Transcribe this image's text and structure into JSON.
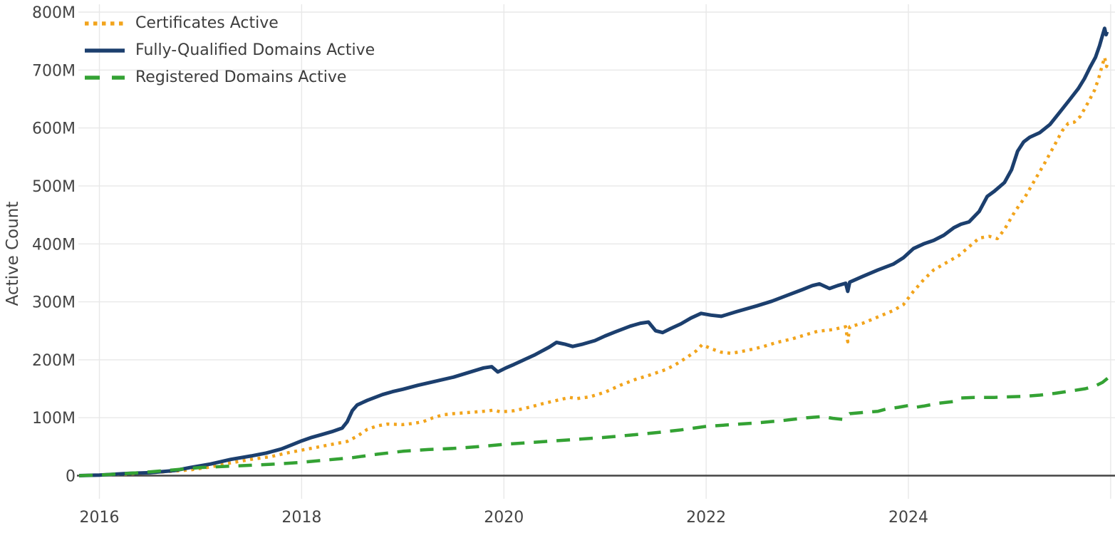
{
  "chart_data": {
    "type": "line",
    "title": "",
    "xlabel": "",
    "ylabel": "Active Count",
    "units": "millions",
    "grid": true,
    "legend_position": "top-left",
    "x_range": [
      2015.75,
      2026.05
    ],
    "y_range_millions": [
      0,
      800
    ],
    "x_ticks": [
      {
        "value": 2016,
        "label": "2016"
      },
      {
        "value": 2018,
        "label": "2018"
      },
      {
        "value": 2020,
        "label": "2020"
      },
      {
        "value": 2022,
        "label": "2022"
      },
      {
        "value": 2024,
        "label": "2024"
      },
      {
        "value": 2026,
        "label": ""
      }
    ],
    "y_ticks": [
      {
        "value": 0,
        "label": "0"
      },
      {
        "value": 100,
        "label": "100M"
      },
      {
        "value": 200,
        "label": "200M"
      },
      {
        "value": 300,
        "label": "300M"
      },
      {
        "value": 400,
        "label": "400M"
      },
      {
        "value": 500,
        "label": "500M"
      },
      {
        "value": 600,
        "label": "600M"
      },
      {
        "value": 700,
        "label": "700M"
      },
      {
        "value": 800,
        "label": "800M"
      }
    ],
    "series": [
      {
        "name": "Certificates Active",
        "color": "#f2a41c",
        "style": "dotted",
        "points": [
          [
            2015.8,
            0
          ],
          [
            2016,
            1
          ],
          [
            2016.3,
            3
          ],
          [
            2016.6,
            6
          ],
          [
            2016.9,
            10
          ],
          [
            2017.1,
            15
          ],
          [
            2017.3,
            22
          ],
          [
            2017.5,
            28
          ],
          [
            2017.7,
            33
          ],
          [
            2017.85,
            39
          ],
          [
            2018,
            44
          ],
          [
            2018.15,
            49
          ],
          [
            2018.3,
            54
          ],
          [
            2018.45,
            59
          ],
          [
            2018.55,
            68
          ],
          [
            2018.65,
            80
          ],
          [
            2018.75,
            86
          ],
          [
            2018.85,
            89
          ],
          [
            2019,
            88
          ],
          [
            2019.1,
            90
          ],
          [
            2019.2,
            93
          ],
          [
            2019.3,
            100
          ],
          [
            2019.4,
            105
          ],
          [
            2019.5,
            107
          ],
          [
            2019.65,
            109
          ],
          [
            2019.8,
            111
          ],
          [
            2019.9,
            113
          ],
          [
            2019.97,
            110
          ],
          [
            2020.1,
            112
          ],
          [
            2020.25,
            118
          ],
          [
            2020.4,
            125
          ],
          [
            2020.55,
            131
          ],
          [
            2020.65,
            135
          ],
          [
            2020.72,
            133
          ],
          [
            2020.85,
            136
          ],
          [
            2021,
            144
          ],
          [
            2021.15,
            156
          ],
          [
            2021.3,
            166
          ],
          [
            2021.45,
            174
          ],
          [
            2021.6,
            183
          ],
          [
            2021.7,
            192
          ],
          [
            2021.8,
            203
          ],
          [
            2021.9,
            215
          ],
          [
            2021.96,
            226
          ],
          [
            2022.05,
            219
          ],
          [
            2022.15,
            213
          ],
          [
            2022.25,
            211
          ],
          [
            2022.4,
            216
          ],
          [
            2022.55,
            222
          ],
          [
            2022.7,
            230
          ],
          [
            2022.85,
            236
          ],
          [
            2023,
            244
          ],
          [
            2023.1,
            249
          ],
          [
            2023.25,
            252
          ],
          [
            2023.38,
            257
          ],
          [
            2023.4,
            231
          ],
          [
            2023.42,
            257
          ],
          [
            2023.55,
            263
          ],
          [
            2023.7,
            274
          ],
          [
            2023.85,
            285
          ],
          [
            2023.95,
            295
          ],
          [
            2024.05,
            318
          ],
          [
            2024.15,
            338
          ],
          [
            2024.25,
            355
          ],
          [
            2024.4,
            370
          ],
          [
            2024.5,
            380
          ],
          [
            2024.6,
            395
          ],
          [
            2024.7,
            410
          ],
          [
            2024.8,
            413
          ],
          [
            2024.88,
            409
          ],
          [
            2024.95,
            425
          ],
          [
            2025.05,
            455
          ],
          [
            2025.15,
            480
          ],
          [
            2025.25,
            510
          ],
          [
            2025.35,
            540
          ],
          [
            2025.45,
            572
          ],
          [
            2025.52,
            595
          ],
          [
            2025.58,
            608
          ],
          [
            2025.64,
            610
          ],
          [
            2025.7,
            620
          ],
          [
            2025.78,
            645
          ],
          [
            2025.84,
            665
          ],
          [
            2025.88,
            685
          ],
          [
            2025.92,
            710
          ],
          [
            2025.94,
            722
          ],
          [
            2025.96,
            706
          ],
          [
            2025.97,
            713
          ]
        ]
      },
      {
        "name": "Fully-Qualified Domains Active",
        "color": "#1c3f6e",
        "style": "solid",
        "points": [
          [
            2015.8,
            0
          ],
          [
            2016,
            1
          ],
          [
            2016.3,
            4
          ],
          [
            2016.5,
            5
          ],
          [
            2016.75,
            9
          ],
          [
            2016.9,
            14
          ],
          [
            2017.1,
            20
          ],
          [
            2017.3,
            28
          ],
          [
            2017.5,
            34
          ],
          [
            2017.65,
            39
          ],
          [
            2017.8,
            46
          ],
          [
            2017.9,
            53
          ],
          [
            2018,
            60
          ],
          [
            2018.1,
            66
          ],
          [
            2018.2,
            71
          ],
          [
            2018.3,
            76
          ],
          [
            2018.4,
            82
          ],
          [
            2018.45,
            93
          ],
          [
            2018.5,
            112
          ],
          [
            2018.55,
            122
          ],
          [
            2018.65,
            130
          ],
          [
            2018.8,
            140
          ],
          [
            2018.9,
            145
          ],
          [
            2019,
            149
          ],
          [
            2019.15,
            156
          ],
          [
            2019.3,
            162
          ],
          [
            2019.5,
            170
          ],
          [
            2019.65,
            178
          ],
          [
            2019.8,
            186
          ],
          [
            2019.88,
            188
          ],
          [
            2019.94,
            179
          ],
          [
            2020.02,
            186
          ],
          [
            2020.1,
            192
          ],
          [
            2020.2,
            200
          ],
          [
            2020.3,
            208
          ],
          [
            2020.45,
            222
          ],
          [
            2020.52,
            230
          ],
          [
            2020.6,
            227
          ],
          [
            2020.68,
            223
          ],
          [
            2020.78,
            227
          ],
          [
            2020.9,
            233
          ],
          [
            2021,
            241
          ],
          [
            2021.1,
            248
          ],
          [
            2021.25,
            258
          ],
          [
            2021.35,
            263
          ],
          [
            2021.43,
            265
          ],
          [
            2021.5,
            250
          ],
          [
            2021.57,
            247
          ],
          [
            2021.65,
            254
          ],
          [
            2021.75,
            262
          ],
          [
            2021.85,
            272
          ],
          [
            2021.95,
            280
          ],
          [
            2022.05,
            277
          ],
          [
            2022.15,
            275
          ],
          [
            2022.3,
            283
          ],
          [
            2022.5,
            293
          ],
          [
            2022.65,
            301
          ],
          [
            2022.8,
            311
          ],
          [
            2022.95,
            321
          ],
          [
            2023.05,
            328
          ],
          [
            2023.12,
            331
          ],
          [
            2023.22,
            323
          ],
          [
            2023.3,
            328
          ],
          [
            2023.38,
            332
          ],
          [
            2023.4,
            318
          ],
          [
            2023.42,
            334
          ],
          [
            2023.55,
            344
          ],
          [
            2023.7,
            355
          ],
          [
            2023.85,
            365
          ],
          [
            2023.95,
            376
          ],
          [
            2024.05,
            392
          ],
          [
            2024.15,
            400
          ],
          [
            2024.25,
            406
          ],
          [
            2024.35,
            415
          ],
          [
            2024.45,
            428
          ],
          [
            2024.52,
            434
          ],
          [
            2024.6,
            438
          ],
          [
            2024.7,
            456
          ],
          [
            2024.78,
            482
          ],
          [
            2024.85,
            491
          ],
          [
            2024.95,
            506
          ],
          [
            2025.02,
            528
          ],
          [
            2025.08,
            560
          ],
          [
            2025.14,
            576
          ],
          [
            2025.2,
            584
          ],
          [
            2025.3,
            592
          ],
          [
            2025.4,
            606
          ],
          [
            2025.5,
            628
          ],
          [
            2025.6,
            650
          ],
          [
            2025.68,
            668
          ],
          [
            2025.74,
            685
          ],
          [
            2025.8,
            706
          ],
          [
            2025.85,
            722
          ],
          [
            2025.89,
            742
          ],
          [
            2025.92,
            760
          ],
          [
            2025.94,
            772
          ],
          [
            2025.955,
            761
          ],
          [
            2025.965,
            766
          ]
        ]
      },
      {
        "name": "Registered Domains Active",
        "color": "#34a234",
        "style": "dashed",
        "points": [
          [
            2015.8,
            0
          ],
          [
            2016,
            1
          ],
          [
            2016.2,
            3
          ],
          [
            2016.4,
            5
          ],
          [
            2016.6,
            8
          ],
          [
            2016.8,
            11
          ],
          [
            2017,
            14
          ],
          [
            2017.25,
            16
          ],
          [
            2017.5,
            18
          ],
          [
            2017.75,
            20
          ],
          [
            2018,
            23
          ],
          [
            2018.25,
            27
          ],
          [
            2018.5,
            31
          ],
          [
            2018.75,
            37
          ],
          [
            2019,
            42
          ],
          [
            2019.25,
            45
          ],
          [
            2019.5,
            47
          ],
          [
            2019.75,
            50
          ],
          [
            2020,
            54
          ],
          [
            2020.25,
            57
          ],
          [
            2020.5,
            60
          ],
          [
            2020.75,
            63
          ],
          [
            2021,
            66
          ],
          [
            2021.25,
            70
          ],
          [
            2021.5,
            74
          ],
          [
            2021.75,
            79
          ],
          [
            2022,
            85
          ],
          [
            2022.25,
            88
          ],
          [
            2022.5,
            91
          ],
          [
            2022.75,
            95
          ],
          [
            2023,
            100
          ],
          [
            2023.15,
            102
          ],
          [
            2023.25,
            99
          ],
          [
            2023.35,
            97
          ],
          [
            2023.42,
            107
          ],
          [
            2023.55,
            109
          ],
          [
            2023.7,
            111
          ],
          [
            2023.78,
            115
          ],
          [
            2023.9,
            118
          ],
          [
            2024,
            121
          ],
          [
            2024.07,
            118
          ],
          [
            2024.15,
            120
          ],
          [
            2024.3,
            125
          ],
          [
            2024.45,
            128
          ],
          [
            2024.52,
            134
          ],
          [
            2024.65,
            135
          ],
          [
            2024.85,
            135
          ],
          [
            2025,
            136
          ],
          [
            2025.15,
            137
          ],
          [
            2025.3,
            139
          ],
          [
            2025.45,
            142
          ],
          [
            2025.6,
            146
          ],
          [
            2025.75,
            150
          ],
          [
            2025.85,
            155
          ],
          [
            2025.92,
            161
          ],
          [
            2025.97,
            168
          ]
        ]
      }
    ]
  },
  "colors": {
    "background": "#ffffff",
    "grid": "#e8e8e8",
    "zero_line": "#444444",
    "tick_text": "#444444",
    "legend_text": "#3d3d3d",
    "certificates": "#f2a41c",
    "fqdn": "#1c3f6e",
    "registered": "#34a234"
  }
}
